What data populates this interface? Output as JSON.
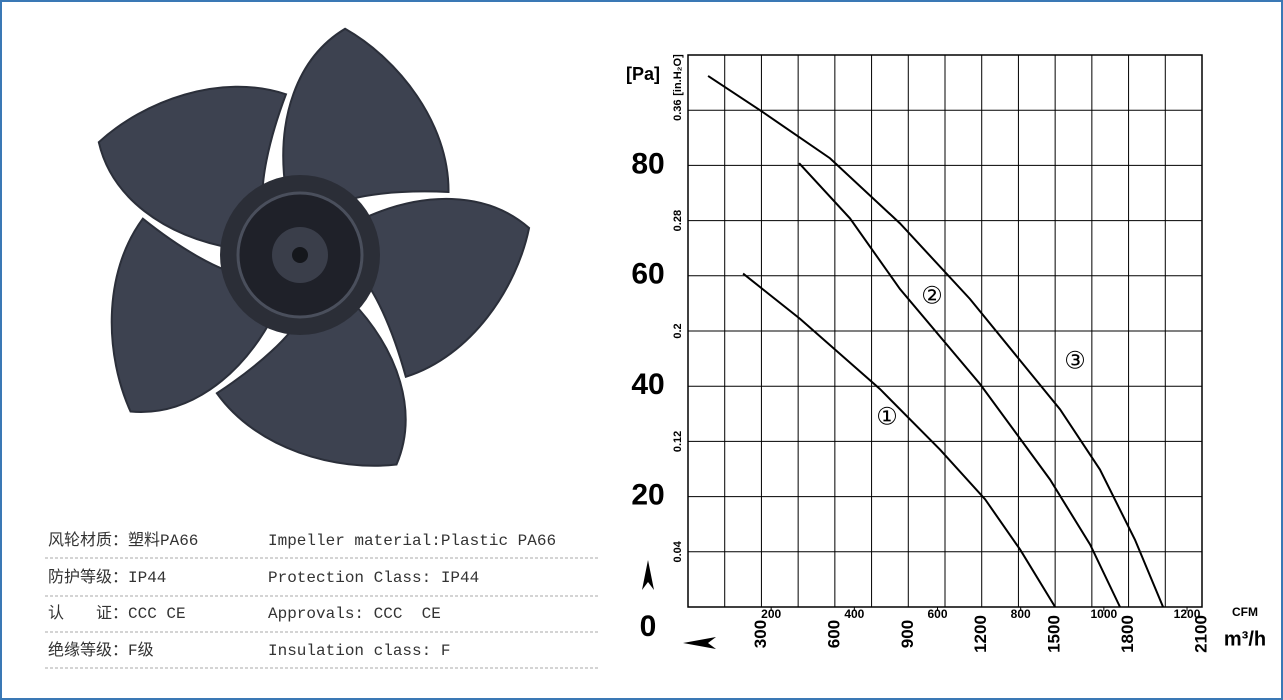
{
  "chart_data": {
    "type": "line",
    "y_label": "[Pa]",
    "y2_label": "[in.H₂O]",
    "x_label": "m³/h",
    "x2_label": "CFM",
    "xlim": [
      0,
      2100
    ],
    "xticks": [
      300,
      600,
      900,
      1200,
      1500,
      1800,
      2100
    ],
    "x2lim": [
      0,
      1236
    ],
    "x2ticks": [
      200,
      400,
      600,
      800,
      1000,
      1200
    ],
    "ylim": [
      0,
      100
    ],
    "yticks": [
      0,
      20,
      40,
      60,
      80
    ],
    "y2lim": [
      0,
      0.4
    ],
    "y2ticks": [
      0.04,
      0.12,
      0.2,
      0.28,
      0.36
    ],
    "grid": true,
    "series": [
      {
        "name": "①",
        "color": "#000000",
        "x": [
          225,
          458,
          784,
          1030,
          1214,
          1357,
          1500
        ],
        "values": [
          60.4,
          52.2,
          39.5,
          28.5,
          19.5,
          10.4,
          0
        ]
      },
      {
        "name": "②",
        "color": "#000000",
        "x": [
          454,
          662,
          866,
          1193,
          1479,
          1643,
          1765
        ],
        "values": [
          80.4,
          70.4,
          57.6,
          40.4,
          23.1,
          11.3,
          0
        ]
      },
      {
        "name": "③",
        "color": "#000000",
        "x": [
          82,
          294,
          580,
          866,
          1152,
          1520,
          1683,
          1826,
          1941
        ],
        "values": [
          96.2,
          90,
          81.3,
          69.5,
          55.8,
          35.8,
          24.9,
          12.2,
          0
        ]
      }
    ]
  },
  "specs": [
    [
      "风轮材质：塑料PA66",
      "Impeller material:Plastic PA66"
    ],
    [
      "防护等级：IP44",
      "Protection Class: IP44"
    ],
    [
      "认　　证：CCC CE",
      "Approvals: CCC  CE"
    ],
    [
      "绝缘等级：F级",
      "Insulation class: F"
    ]
  ]
}
